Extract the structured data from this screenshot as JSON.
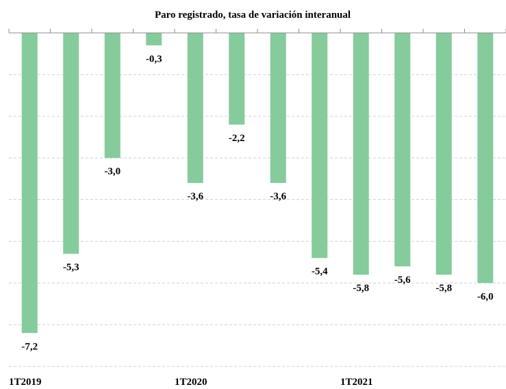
{
  "chart_data": {
    "type": "bar",
    "title": "Paro registrado, tasa de variación interanual",
    "categories": [
      "1T2019",
      null,
      null,
      null,
      "1T2020",
      null,
      null,
      null,
      "1T2021",
      null,
      null,
      null
    ],
    "values": [
      -7.2,
      -5.3,
      -3.0,
      -0.3,
      -3.6,
      -2.2,
      -3.6,
      -5.4,
      -5.8,
      -5.6,
      -5.8,
      -6.0
    ],
    "value_labels": [
      "-7,2",
      "-5,3",
      "-3,0",
      "-0,3",
      "-3,6",
      "-2,2",
      "-3,6",
      "-5,4",
      "-5,8",
      "-5,6",
      "-5,8",
      "-6,0"
    ],
    "color": "#85cb9c",
    "ylim": [
      -8,
      0
    ],
    "yticks": [
      -8,
      -7,
      -6,
      -5,
      -4,
      -3,
      -2,
      -1
    ],
    "grid": true
  }
}
